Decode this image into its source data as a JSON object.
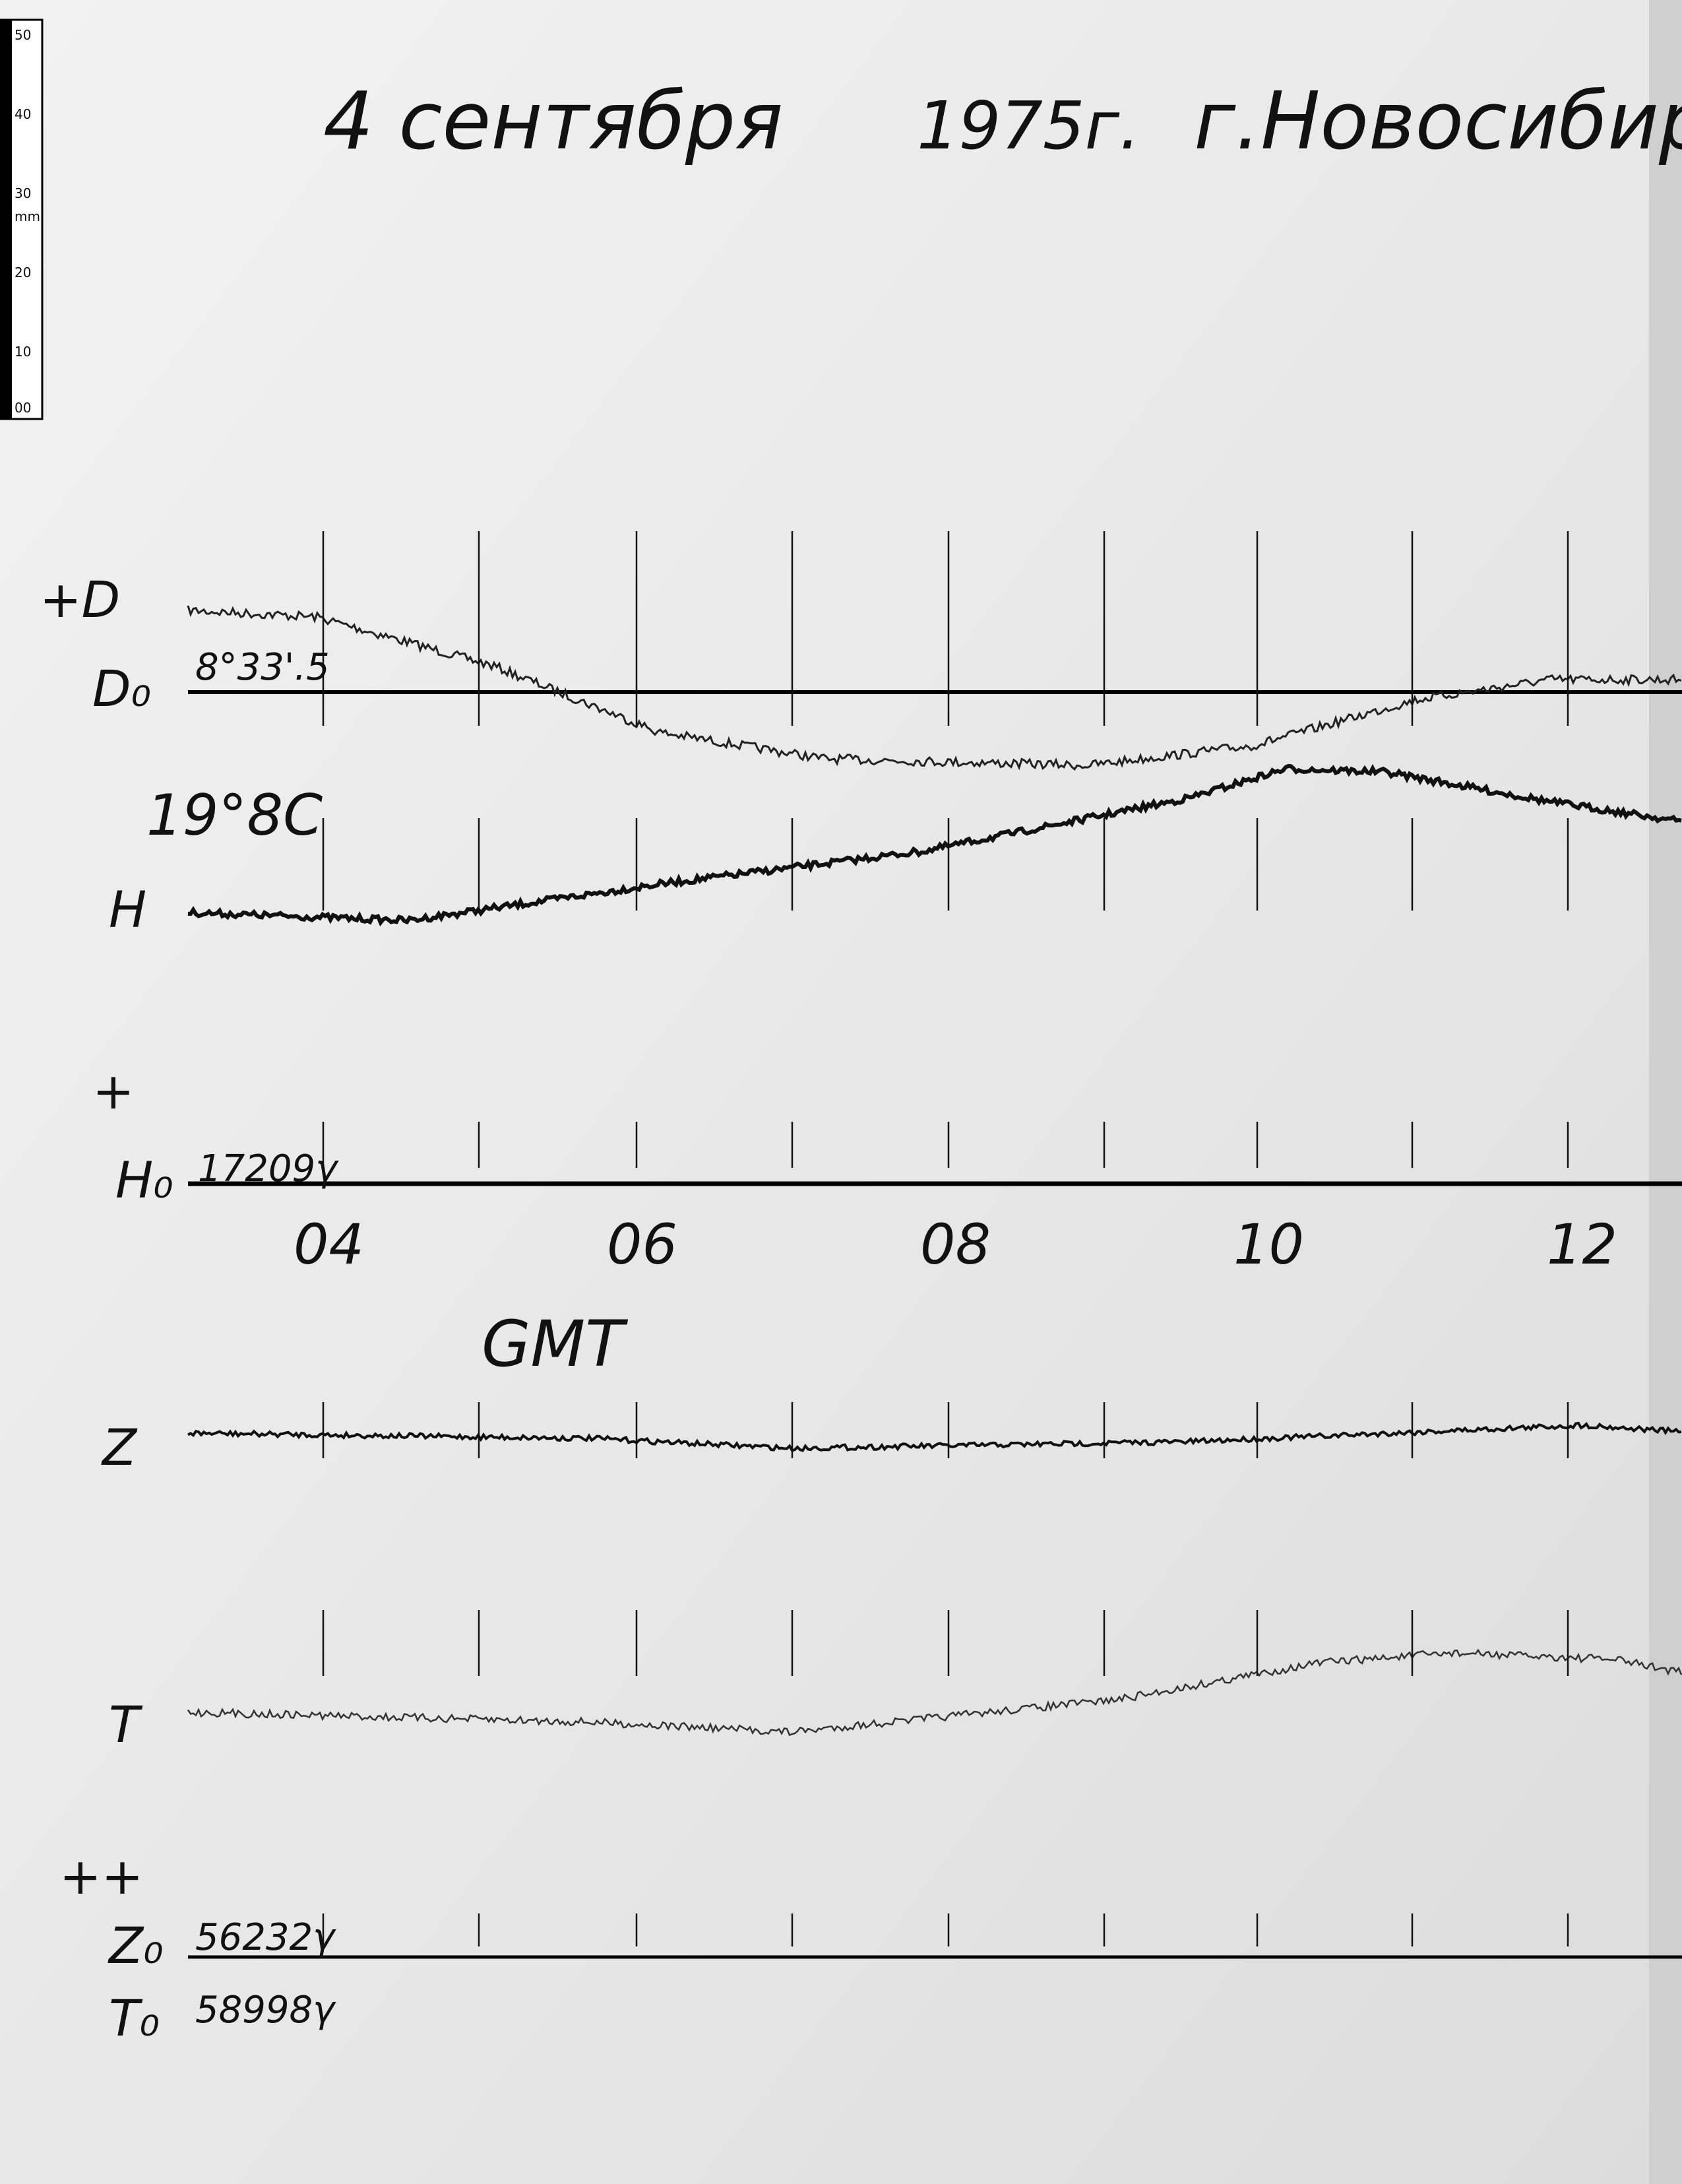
{
  "header": {
    "title_date": "4 сентября",
    "title_year": "1975г.",
    "title_place": "г.Новосибирс"
  },
  "ruler": {
    "labels": [
      "50",
      "40",
      "30",
      "mm",
      "20",
      "10",
      "00"
    ]
  },
  "traces": {
    "d_label": "+D",
    "d_base_label": "D₀",
    "d_base_value": "8°33'.5",
    "temperature": "19°8C",
    "h_label": "H",
    "h_plus": "+",
    "h_base_label": "H₀",
    "h_base_value": "17209γ",
    "z_label": "Z",
    "t_label": "T",
    "zt_plus": "++",
    "z_base_label": "Z₀",
    "z_base_value": "56232γ",
    "t_base_label": "T₀",
    "t_base_value": "58998γ"
  },
  "time_axis": {
    "labels": [
      "04",
      "06",
      "08",
      "10",
      "12"
    ],
    "unit": "GMT"
  }
}
